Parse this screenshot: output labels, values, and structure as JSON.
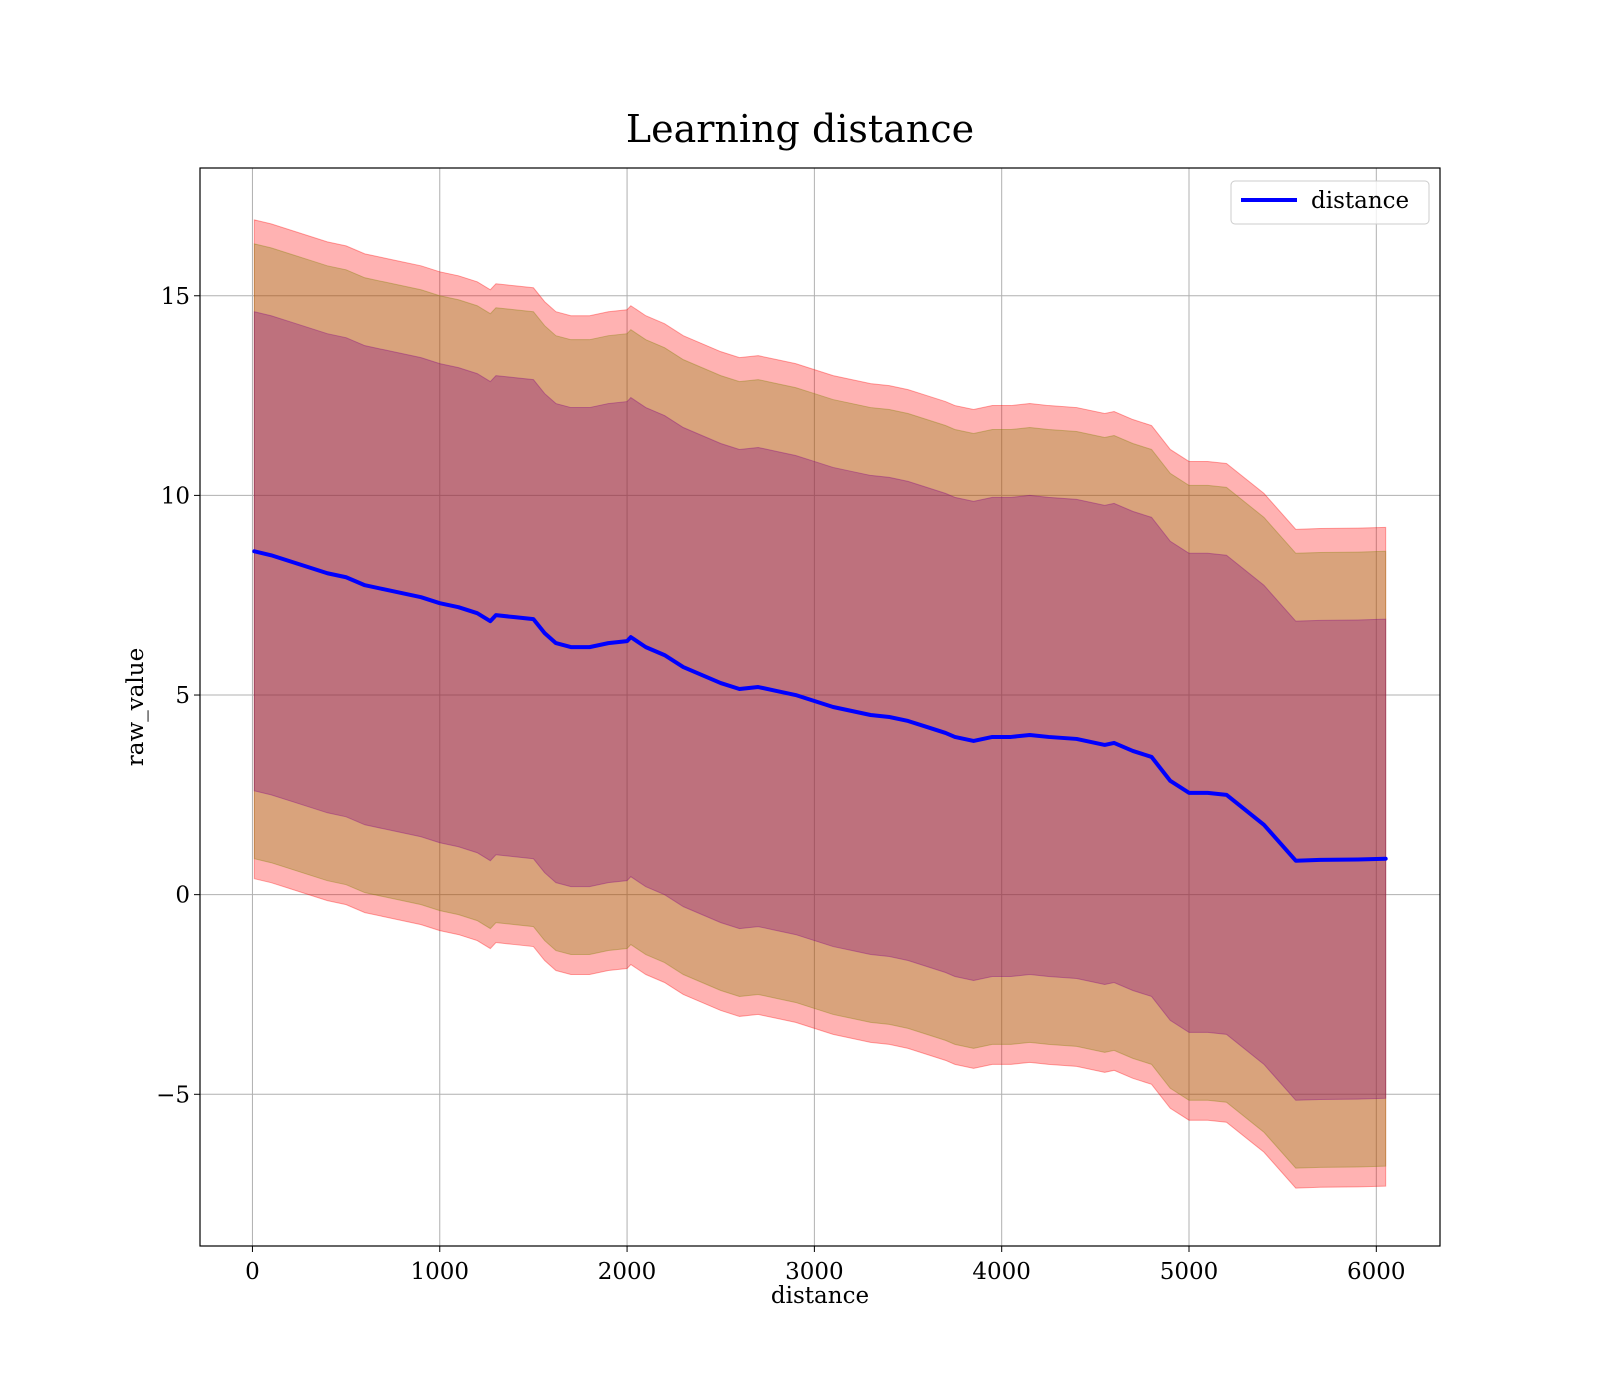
{
  "chart_data": {
    "type": "line",
    "title": "Learning distance",
    "xlabel": "distance",
    "ylabel": "raw_value",
    "xlim": [
      -280,
      6340
    ],
    "ylim": [
      -8.8,
      18.2
    ],
    "xticks": [
      0,
      1000,
      2000,
      3000,
      4000,
      5000,
      6000
    ],
    "yticks": [
      -5,
      0,
      5,
      10,
      15
    ],
    "ytick_labels": [
      "−5",
      "0",
      "5",
      "10",
      "15"
    ],
    "grid": true,
    "legend": {
      "position": "top-right",
      "entries": [
        "distance"
      ]
    },
    "x": [
      10,
      100,
      200,
      300,
      400,
      500,
      600,
      700,
      800,
      900,
      1000,
      1100,
      1200,
      1270,
      1300,
      1400,
      1500,
      1560,
      1620,
      1700,
      1800,
      1900,
      2000,
      2020,
      2100,
      2200,
      2300,
      2400,
      2500,
      2600,
      2700,
      2800,
      2900,
      3000,
      3100,
      3200,
      3300,
      3400,
      3500,
      3600,
      3700,
      3750,
      3850,
      3950,
      4050,
      4150,
      4250,
      4400,
      4550,
      4600,
      4700,
      4800,
      4900,
      5000,
      5100,
      5200,
      5400,
      5570,
      5700,
      5900,
      6050
    ],
    "series": [
      {
        "name": "distance",
        "color": "#0000ff",
        "values": [
          8.6,
          8.5,
          8.35,
          8.2,
          8.05,
          7.95,
          7.75,
          7.65,
          7.55,
          7.45,
          7.3,
          7.2,
          7.05,
          6.85,
          7.0,
          6.95,
          6.9,
          6.55,
          6.3,
          6.2,
          6.2,
          6.3,
          6.35,
          6.45,
          6.2,
          6.0,
          5.7,
          5.5,
          5.3,
          5.15,
          5.2,
          5.1,
          5.0,
          4.85,
          4.7,
          4.6,
          4.5,
          4.45,
          4.35,
          4.2,
          4.05,
          3.95,
          3.85,
          3.95,
          3.95,
          4.0,
          3.95,
          3.9,
          3.75,
          3.8,
          3.6,
          3.45,
          2.85,
          2.55,
          2.55,
          2.5,
          1.75,
          0.85,
          0.87,
          0.88,
          0.9
        ]
      }
    ],
    "bands": [
      {
        "name": "outer band",
        "color": "#ff0000",
        "opacity": 0.3,
        "lower_offset": -8.2,
        "upper_offset": 8.3
      },
      {
        "name": "middle band",
        "color": "#808000",
        "opacity": 0.3,
        "lower_offset": -7.7,
        "upper_offset": 7.7
      },
      {
        "name": "inner band",
        "color": "#800080",
        "opacity": 0.3,
        "lower_offset": -6.0,
        "upper_offset": 6.0
      }
    ]
  }
}
